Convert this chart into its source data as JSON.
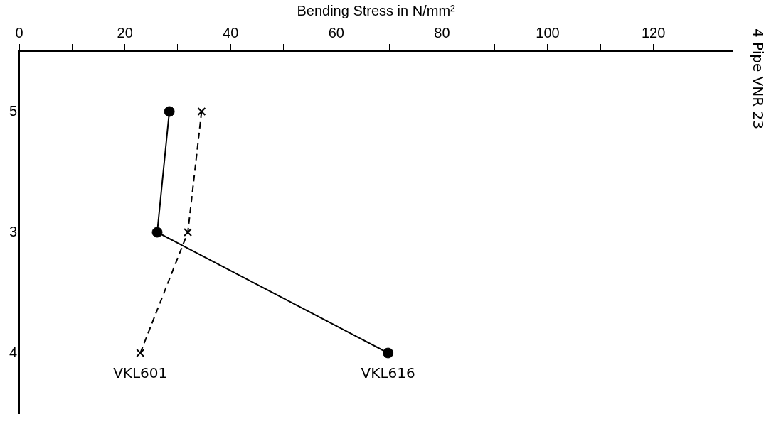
{
  "chart_data": {
    "type": "line",
    "orientation": "horizontal",
    "title": "4 Pipe VNR 23",
    "xlabel": "Bending Stress in N/mm²",
    "categories": [
      "5",
      "3",
      "4"
    ],
    "series": [
      {
        "name": "VKL616",
        "color": "#000000",
        "values": [
          28.4,
          26.1,
          69.8
        ],
        "marker": "circle",
        "line_style": "solid"
      },
      {
        "name": "VKL601",
        "color": "#000000",
        "values": [
          34.5,
          31.9,
          22.9
        ],
        "marker": "cross",
        "line_style": "dashed"
      }
    ],
    "xlim": [
      0,
      135
    ],
    "xticks": [
      0,
      {
        "value": 10,
        "label": null
      },
      20,
      {
        "value": 30,
        "label": null
      },
      40,
      {
        "value": 50,
        "label": null
      },
      60,
      {
        "value": 70,
        "label": null
      },
      80,
      {
        "value": 90,
        "label": null
      },
      100,
      {
        "value": 110,
        "label": null
      },
      120,
      {
        "value": 130,
        "label": null
      }
    ],
    "grid": false,
    "legend": false
  }
}
